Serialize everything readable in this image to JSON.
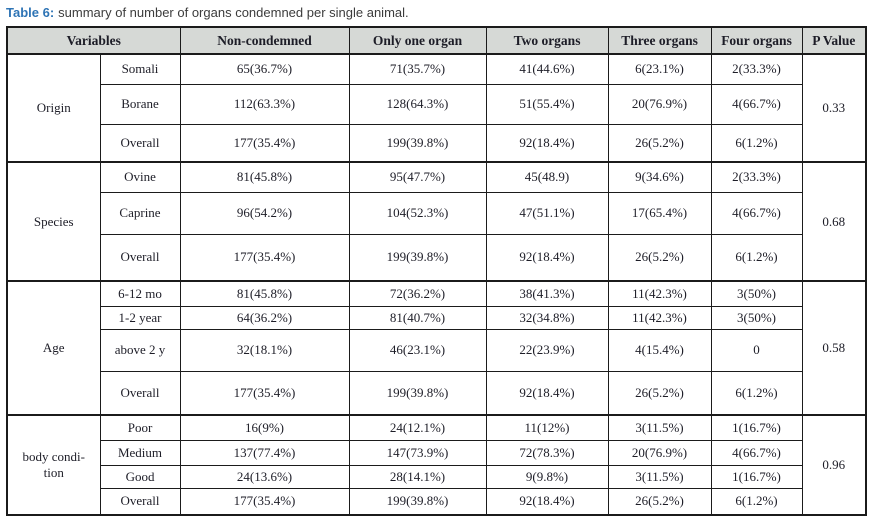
{
  "title": {
    "label": "Table 6:",
    "text": "summary of number of organs condemned per single animal."
  },
  "table": {
    "headers": [
      "Variables",
      "Non-condemned",
      "Only one organ",
      "Two organs",
      "Three organs",
      "Four organs",
      "P Value"
    ],
    "sections": [
      {
        "group": "Origin",
        "p_value": "0.33",
        "rows": [
          {
            "label": "Somali",
            "values": [
              "65(36.7%)",
              "71(35.7%)",
              "41(44.6%)",
              "6(23.1%)",
              "2(33.3%)"
            ]
          },
          {
            "label": "Borane",
            "values": [
              "112(63.3%)",
              "128(64.3%)",
              "51(55.4%)",
              "20(76.9%)",
              "4(66.7%)"
            ]
          },
          {
            "label": "Overall",
            "values": [
              "177(35.4%)",
              "199(39.8%)",
              "92(18.4%)",
              "26(5.2%)",
              "6(1.2%)"
            ]
          }
        ]
      },
      {
        "group": "Species",
        "p_value": "0.68",
        "rows": [
          {
            "label": "Ovine",
            "values": [
              "81(45.8%)",
              "95(47.7%)",
              "45(48.9)",
              "9(34.6%)",
              "2(33.3%)"
            ]
          },
          {
            "label": "Caprine",
            "values": [
              "96(54.2%)",
              "104(52.3%)",
              "47(51.1%)",
              "17(65.4%)",
              "4(66.7%)"
            ]
          },
          {
            "label": "Overall",
            "values": [
              "177(35.4%)",
              "199(39.8%)",
              "92(18.4%)",
              "26(5.2%)",
              "6(1.2%)"
            ]
          }
        ]
      },
      {
        "group": "Age",
        "p_value": "0.58",
        "rows": [
          {
            "label": "6-12 mo",
            "values": [
              "81(45.8%)",
              "72(36.2%)",
              "38(41.3%)",
              "11(42.3%)",
              "3(50%)"
            ]
          },
          {
            "label": "1-2 year",
            "values": [
              "64(36.2%)",
              "81(40.7%)",
              "32(34.8%)",
              "11(42.3%)",
              "3(50%)"
            ]
          },
          {
            "label": "above 2 y",
            "values": [
              "32(18.1%)",
              "46(23.1%)",
              "22(23.9%)",
              "4(15.4%)",
              "0"
            ]
          },
          {
            "label": "Overall",
            "values": [
              "177(35.4%)",
              "199(39.8%)",
              "92(18.4%)",
              "26(5.2%)",
              "6(1.2%)"
            ]
          }
        ]
      },
      {
        "group": "body condi-\ntion",
        "p_value": "0.96",
        "rows": [
          {
            "label": "Poor",
            "values": [
              "16(9%)",
              "24(12.1%)",
              "11(12%)",
              "3(11.5%)",
              "1(16.7%)"
            ]
          },
          {
            "label": "Medium",
            "values": [
              "137(77.4%)",
              "147(73.9%)",
              "72(78.3%)",
              "20(76.9%)",
              "4(66.7%)"
            ]
          },
          {
            "label": "Good",
            "values": [
              "24(13.6%)",
              "28(14.1%)",
              "9(9.8%)",
              "3(11.5%)",
              "1(16.7%)"
            ]
          },
          {
            "label": "Overall",
            "values": [
              "177(35.4%)",
              "199(39.8%)",
              "92(18.4%)",
              "26(5.2%)",
              "6(1.2%)"
            ]
          }
        ]
      }
    ]
  },
  "colors": {
    "accent_blue": "#2e74b5",
    "header_bg": "#d6d9d6",
    "border": "#1b1b1b",
    "text": "#1d1d27"
  }
}
